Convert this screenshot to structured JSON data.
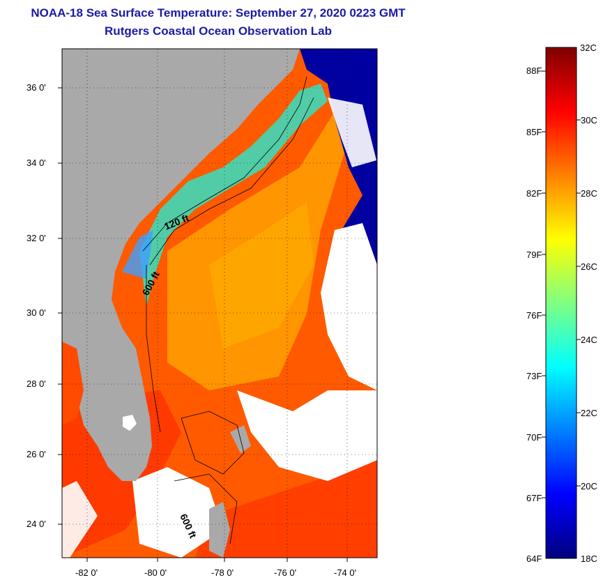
{
  "header": {
    "title": "NOAA-18 Sea Surface Temperature:  September 27, 2020 0223 GMT",
    "subtitle": "Rutgers Coastal Ocean Observation Lab"
  },
  "map": {
    "lat_ticks": [
      "36 0'",
      "34 0'",
      "32 0'",
      "30 0'",
      "28 0'",
      "26 0'",
      "24 0'"
    ],
    "lon_ticks": [
      "-82 0'",
      "-80 0'",
      "-78 0'",
      "-76 0'",
      "-74 0'"
    ],
    "contour_labels": [
      "120 ft",
      "600 ft",
      "600 ft"
    ]
  },
  "colorbar": {
    "celsius_labels": [
      "32C",
      "30C",
      "28C",
      "26C",
      "24C",
      "22C",
      "20C",
      "18C"
    ],
    "fahrenheit_labels": [
      "88F",
      "85F",
      "82F",
      "79F",
      "76F",
      "73F",
      "70F",
      "67F",
      "64F"
    ],
    "colors": [
      "#00007f",
      "#0000ff",
      "#0080ff",
      "#00ffff",
      "#80ff80",
      "#ffff00",
      "#ff8000",
      "#ff0000",
      "#7f0000"
    ]
  },
  "colors": {
    "land": "#a9a9a9",
    "title": "#1a1aa6",
    "ocean_warm": "#ff5a00",
    "ocean_hot": "#ff3200",
    "ocean_mid": "#ffa000",
    "ocean_cool": "#40e0c0",
    "ocean_cold": "#0000a0"
  }
}
